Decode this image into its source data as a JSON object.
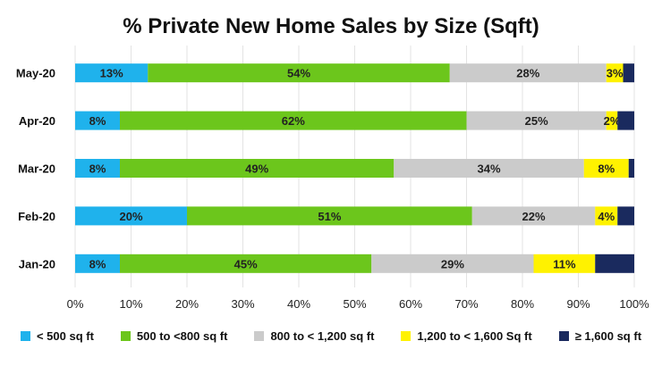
{
  "chart_data": {
    "type": "bar",
    "orientation": "horizontal",
    "stacked": true,
    "title": "% Private New Home Sales by Size (Sqft)",
    "categories": [
      "May-20",
      "Apr-20",
      "Mar-20",
      "Feb-20",
      "Jan-20"
    ],
    "series": [
      {
        "name": "< 500 sq ft",
        "color": "#1fb2ec",
        "values": [
          13,
          8,
          8,
          20,
          8
        ],
        "labels": [
          "13%",
          "8%",
          "8%",
          "20%",
          "8%"
        ]
      },
      {
        "name": "500 to <800 sq ft",
        "color": "#6cc61c",
        "values": [
          54,
          62,
          49,
          51,
          45
        ],
        "labels": [
          "54%",
          "62%",
          "49%",
          "51%",
          "45%"
        ]
      },
      {
        "name": "800 to < 1,200 sq ft",
        "color": "#cbcbcb",
        "values": [
          28,
          25,
          34,
          22,
          29
        ],
        "labels": [
          "28%",
          "25%",
          "34%",
          "22%",
          "29%"
        ]
      },
      {
        "name": "1,200 to < 1,600 Sq ft",
        "color": "#fff200",
        "values": [
          3,
          2,
          8,
          4,
          11
        ],
        "labels": [
          "3%",
          "2%",
          "8%",
          "4%",
          "11%"
        ]
      },
      {
        "name": "≥ 1,600 sq ft",
        "color": "#1a2a5e",
        "values": [
          2,
          3,
          1,
          3,
          7
        ],
        "labels": [
          "",
          "",
          "",
          "",
          ""
        ]
      }
    ],
    "x_ticks": [
      "0%",
      "10%",
      "20%",
      "30%",
      "40%",
      "50%",
      "60%",
      "70%",
      "80%",
      "90%",
      "100%"
    ],
    "xlim": [
      0,
      100
    ],
    "grid": true,
    "legend_position": "bottom"
  }
}
